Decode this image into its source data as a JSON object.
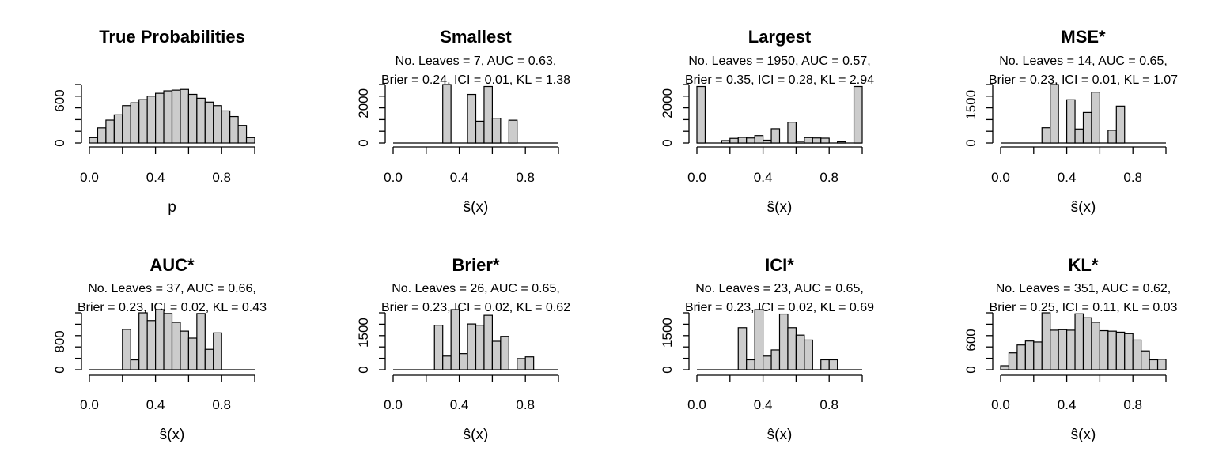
{
  "chart_data": [
    {
      "type": "bar",
      "title": "True Probabilities",
      "sub1": "",
      "sub2": "",
      "xlabel": "p",
      "xlim": [
        0,
        1
      ],
      "ylim": [
        0,
        830
      ],
      "yticks": [
        0,
        600
      ],
      "xticks": [
        "0.0",
        "0.4",
        "0.8"
      ],
      "bin_width": 0.05,
      "x": [
        0.025,
        0.075,
        0.125,
        0.175,
        0.225,
        0.275,
        0.325,
        0.375,
        0.425,
        0.475,
        0.525,
        0.575,
        0.625,
        0.675,
        0.725,
        0.775,
        0.825,
        0.875,
        0.925,
        0.975
      ],
      "values": [
        75,
        215,
        325,
        400,
        530,
        570,
        615,
        665,
        705,
        740,
        750,
        760,
        690,
        635,
        580,
        530,
        455,
        375,
        250,
        75
      ]
    },
    {
      "type": "bar",
      "title": "Smallest",
      "sub1": "No. Leaves = 7, AUC = 0.63,",
      "sub2": "Brier = 0.24, ICI = 0.01, KL = 1.38",
      "xlabel": "ŝ(x)",
      "xlim": [
        0,
        1
      ],
      "ylim": [
        0,
        2950
      ],
      "yticks": [
        0,
        2000
      ],
      "xticks": [
        "0.0",
        "0.4",
        "0.8"
      ],
      "bin_width": 0.05,
      "x": [
        0.325,
        0.475,
        0.525,
        0.575,
        0.625,
        0.725
      ],
      "values": [
        2950,
        2450,
        1100,
        2850,
        1250,
        1150
      ]
    },
    {
      "type": "bar",
      "title": "Largest",
      "sub1": "No. Leaves = 1950, AUC = 0.57,",
      "sub2": "Brier = 0.35, ICI = 0.28, KL = 2.94",
      "xlabel": "ŝ(x)",
      "xlim": [
        0,
        1
      ],
      "ylim": [
        0,
        2950
      ],
      "yticks": [
        0,
        2000
      ],
      "xticks": [
        "0.0",
        "0.4",
        "0.8"
      ],
      "bin_width": 0.05,
      "x": [
        0.025,
        0.175,
        0.225,
        0.275,
        0.325,
        0.375,
        0.425,
        0.475,
        0.575,
        0.625,
        0.675,
        0.725,
        0.775,
        0.875,
        0.975
      ],
      "values": [
        2850,
        120,
        230,
        280,
        250,
        370,
        140,
        720,
        1050,
        80,
        270,
        250,
        240,
        60,
        2850
      ]
    },
    {
      "type": "bar",
      "title": "MSE*",
      "sub1": "No. Leaves = 14, AUC = 0.65,",
      "sub2": "Brier = 0.23, ICI = 0.01, KL = 1.07",
      "xlabel": "ŝ(x)",
      "xlim": [
        0,
        1
      ],
      "ylim": [
        0,
        2300
      ],
      "yticks": [
        0,
        1500
      ],
      "xticks": [
        "0.0",
        "0.4",
        "0.8"
      ],
      "bin_width": 0.05,
      "x": [
        0.275,
        0.325,
        0.425,
        0.475,
        0.525,
        0.575,
        0.675,
        0.725
      ],
      "values": [
        600,
        2300,
        1700,
        550,
        1200,
        2000,
        500,
        1450
      ]
    },
    {
      "type": "bar",
      "title": "AUC*",
      "sub1": "No. Leaves = 37, AUC = 0.66,",
      "sub2": "Brier = 0.23, ICI = 0.02, KL = 0.43",
      "xlabel": "ŝ(x)",
      "xlim": [
        0,
        1
      ],
      "ylim": [
        0,
        1620
      ],
      "yticks": [
        0,
        800
      ],
      "xticks": [
        "0.0",
        "0.4",
        "0.8"
      ],
      "bin_width": 0.05,
      "x": [
        0.225,
        0.275,
        0.325,
        0.375,
        0.425,
        0.475,
        0.525,
        0.575,
        0.625,
        0.675,
        0.725,
        0.775
      ],
      "values": [
        1150,
        280,
        1620,
        1400,
        1750,
        1600,
        1350,
        1100,
        900,
        1600,
        580,
        1050
      ]
    },
    {
      "type": "bar",
      "title": "Brier*",
      "sub1": "No. Leaves = 26, AUC = 0.65,",
      "sub2": "Brier = 0.23, ICI = 0.02, KL = 0.62",
      "xlabel": "ŝ(x)",
      "xlim": [
        0,
        1
      ],
      "ylim": [
        0,
        2300
      ],
      "yticks": [
        0,
        1500
      ],
      "xticks": [
        "0.0",
        "0.4",
        "0.8"
      ],
      "bin_width": 0.05,
      "x": [
        0.275,
        0.325,
        0.375,
        0.425,
        0.475,
        0.525,
        0.575,
        0.625,
        0.675,
        0.775,
        0.825
      ],
      "values": [
        1800,
        550,
        2500,
        650,
        1850,
        1800,
        2200,
        1150,
        1350,
        450,
        520
      ]
    },
    {
      "type": "bar",
      "title": "ICI*",
      "sub1": "No. Leaves = 23, AUC = 0.65,",
      "sub2": "Brier = 0.23, ICI = 0.02, KL = 0.69",
      "xlabel": "ŝ(x)",
      "xlim": [
        0,
        1
      ],
      "ylim": [
        0,
        2300
      ],
      "yticks": [
        0,
        1500
      ],
      "xticks": [
        "0.0",
        "0.4",
        "0.8"
      ],
      "bin_width": 0.05,
      "x": [
        0.275,
        0.325,
        0.375,
        0.425,
        0.475,
        0.525,
        0.575,
        0.625,
        0.675,
        0.775,
        0.825
      ],
      "values": [
        1700,
        400,
        2450,
        550,
        800,
        2250,
        1700,
        1400,
        1200,
        400,
        400
      ]
    },
    {
      "type": "bar",
      "title": "KL*",
      "sub1": "No. Leaves = 351, AUC = 0.62,",
      "sub2": "Brier = 0.25, ICI = 0.11, KL = 0.03",
      "xlabel": "ŝ(x)",
      "xlim": [
        0,
        1
      ],
      "ylim": [
        0,
        1150
      ],
      "yticks": [
        0,
        600
      ],
      "xticks": [
        "0.0",
        "0.4",
        "0.8"
      ],
      "bin_width": 0.05,
      "x": [
        0.025,
        0.075,
        0.125,
        0.175,
        0.225,
        0.275,
        0.325,
        0.375,
        0.425,
        0.475,
        0.525,
        0.575,
        0.625,
        0.675,
        0.725,
        0.775,
        0.825,
        0.875,
        0.925,
        0.975
      ],
      "values": [
        80,
        340,
        500,
        580,
        560,
        1150,
        800,
        810,
        800,
        1130,
        1050,
        960,
        790,
        780,
        760,
        730,
        600,
        380,
        200,
        210
      ]
    }
  ]
}
